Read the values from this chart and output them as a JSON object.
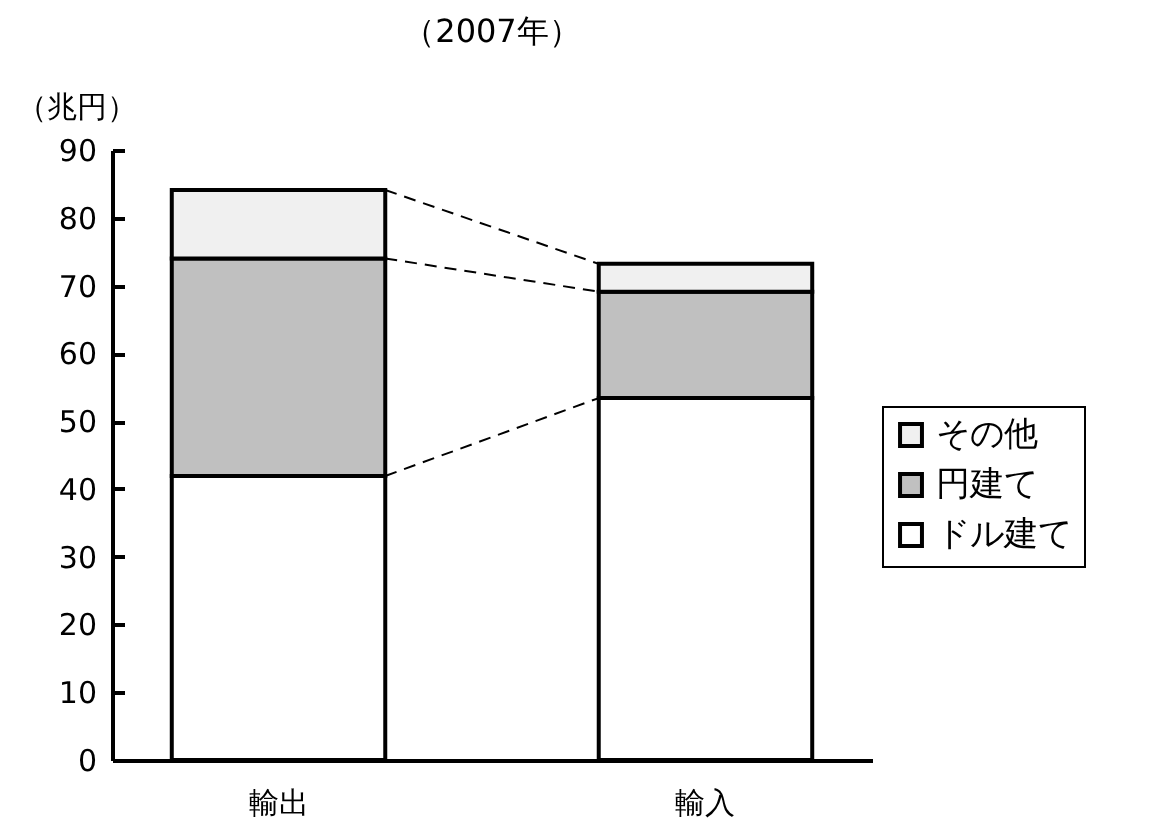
{
  "chart_data": {
    "type": "bar",
    "title": "（2007年）",
    "ylabel": "（兆円）",
    "categories": [
      "輸出",
      "輸入"
    ],
    "stacked": true,
    "series": [
      {
        "name": "ドル建て",
        "color": "#ffffff",
        "values": [
          41.9,
          53.4
        ]
      },
      {
        "name": "円建て",
        "color": "#c0c0c0",
        "values": [
          32.1,
          15.7
        ]
      },
      {
        "name": "その他",
        "color": "#f0f0f0",
        "values": [
          10.1,
          4.1
        ]
      }
    ],
    "ylim": [
      0,
      90
    ],
    "yticks": [
      0,
      10,
      20,
      30,
      40,
      50,
      60,
      70,
      80,
      90
    ],
    "grid": false,
    "legend": "right"
  }
}
